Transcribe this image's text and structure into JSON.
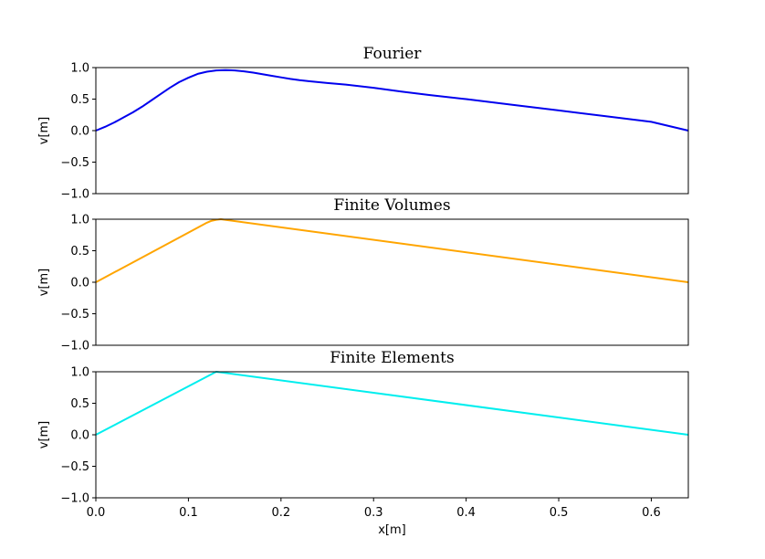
{
  "chart_data": [
    {
      "type": "line",
      "title": "Fourier",
      "ylabel": "v[m]",
      "xlabel": "",
      "xlim": [
        0,
        0.64
      ],
      "ylim": [
        -1.0,
        1.0
      ],
      "yticks": [
        "−1.0",
        "−0.5",
        "0.0",
        "0.5",
        "1.0"
      ],
      "xticks": [],
      "grid": false,
      "color": "#0000ee",
      "x": [
        0.0,
        0.01,
        0.02,
        0.03,
        0.04,
        0.05,
        0.06,
        0.07,
        0.08,
        0.09,
        0.1,
        0.11,
        0.12,
        0.13,
        0.14,
        0.15,
        0.16,
        0.17,
        0.18,
        0.19,
        0.2,
        0.21,
        0.22,
        0.23,
        0.25,
        0.27,
        0.3,
        0.33,
        0.36,
        0.4,
        0.45,
        0.5,
        0.55,
        0.6,
        0.64
      ],
      "y": [
        0.0,
        0.06,
        0.13,
        0.21,
        0.29,
        0.38,
        0.48,
        0.58,
        0.68,
        0.77,
        0.84,
        0.9,
        0.935,
        0.955,
        0.96,
        0.955,
        0.94,
        0.92,
        0.895,
        0.87,
        0.845,
        0.82,
        0.8,
        0.785,
        0.755,
        0.73,
        0.68,
        0.62,
        0.565,
        0.5,
        0.41,
        0.32,
        0.23,
        0.14,
        0.0
      ]
    },
    {
      "type": "line",
      "title": "Finite Volumes",
      "ylabel": "v[m]",
      "xlabel": "",
      "xlim": [
        0,
        0.64
      ],
      "ylim": [
        -1.0,
        1.0
      ],
      "yticks": [
        "−1.0",
        "−0.5",
        "0.0",
        "0.5",
        "1.0"
      ],
      "xticks": [],
      "grid": false,
      "color": "#ffa500",
      "x": [
        0.0,
        0.12,
        0.125,
        0.13,
        0.135,
        0.64
      ],
      "y": [
        0.0,
        0.945,
        0.975,
        0.99,
        1.0,
        0.0
      ]
    },
    {
      "type": "line",
      "title": "Finite Elements",
      "ylabel": "v[m]",
      "xlabel": "x[m]",
      "xlim": [
        0,
        0.64
      ],
      "ylim": [
        -1.0,
        1.0
      ],
      "yticks": [
        "−1.0",
        "−0.5",
        "0.0",
        "0.5",
        "1.0"
      ],
      "xticks": [
        "0.0",
        "0.1",
        "0.2",
        "0.3",
        "0.4",
        "0.5",
        "0.6"
      ],
      "grid": false,
      "color": "#00eeee",
      "x": [
        0.0,
        0.13,
        0.64
      ],
      "y": [
        0.0,
        1.0,
        0.0
      ]
    }
  ]
}
